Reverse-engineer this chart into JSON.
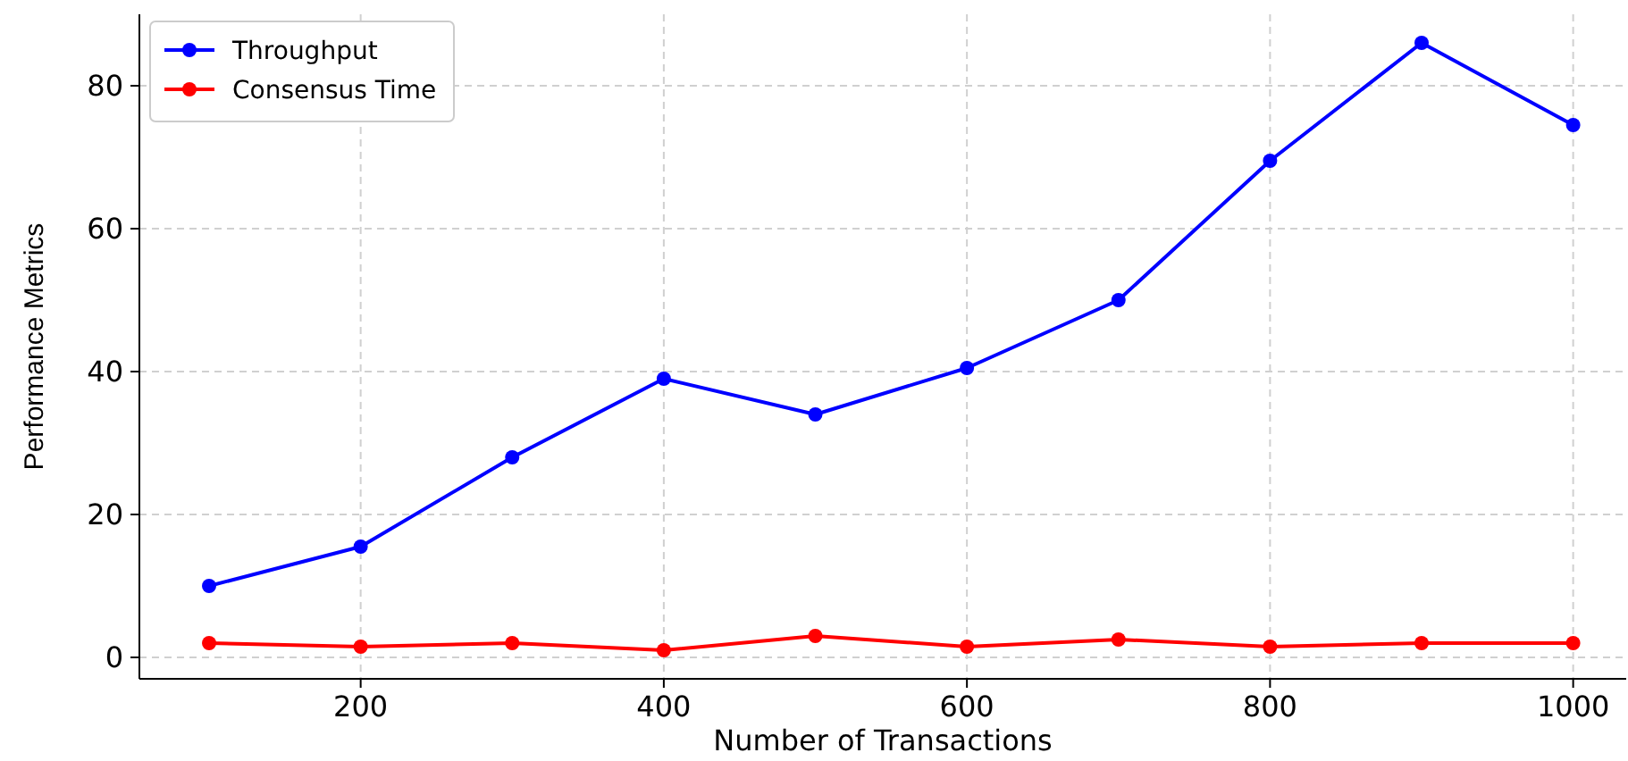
{
  "chart_data": {
    "type": "line",
    "xlabel": "Number of Transactions",
    "ylabel": "Performance Metrics",
    "x": [
      100,
      200,
      300,
      400,
      500,
      600,
      700,
      800,
      900,
      1000
    ],
    "series": [
      {
        "name": "Throughput",
        "color": "#0000ff",
        "values": [
          10,
          15.5,
          28,
          39,
          34,
          40.5,
          50,
          69.5,
          86,
          74.5
        ]
      },
      {
        "name": "Consensus Time",
        "color": "#ff0000",
        "values": [
          2,
          1.5,
          2,
          1,
          3,
          1.5,
          2.5,
          1.5,
          2,
          2
        ]
      }
    ],
    "xlim": [
      54,
      1035
    ],
    "ylim": [
      -3,
      90
    ],
    "xticks": [
      200,
      400,
      600,
      800,
      1000
    ],
    "yticks": [
      0,
      20,
      40,
      60,
      80
    ],
    "grid": true,
    "legend": "top left",
    "marker": "circle",
    "line_style": "solid"
  }
}
